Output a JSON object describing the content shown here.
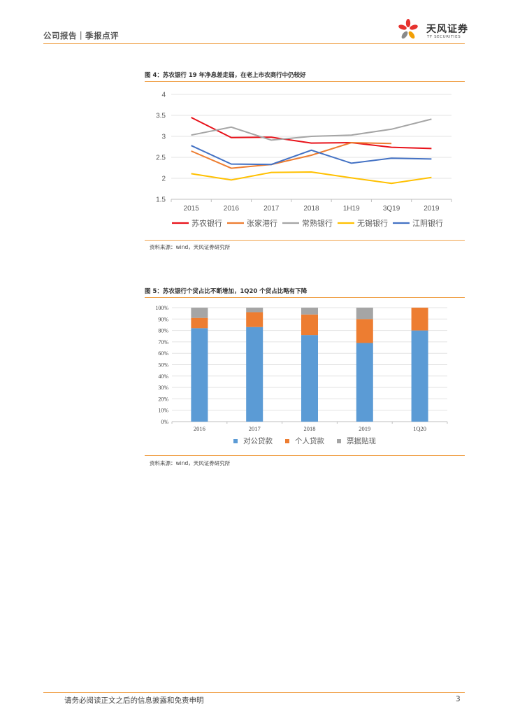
{
  "header": {
    "left_text": "公司报告｜季报点评",
    "logo_cn": "天风证券",
    "logo_en": "TF SECURITIES"
  },
  "figure4": {
    "title": "图 4：苏农银行 19 年净息差走弱，在老上市农商行中仍较好",
    "source": "资料来源：wind，天风证券研究所",
    "chart_data": {
      "type": "line",
      "categories": [
        "2015",
        "2016",
        "2017",
        "2018",
        "1H19",
        "3Q19",
        "2019"
      ],
      "ylim": [
        1.5,
        4
      ],
      "yticks": [
        "1.5",
        "2",
        "2.5",
        "3",
        "3.5",
        "4"
      ],
      "series": [
        {
          "name": "苏农银行",
          "color": "#e8121a",
          "values": [
            3.45,
            2.97,
            2.98,
            2.84,
            2.85,
            2.74,
            2.71
          ]
        },
        {
          "name": "张家港行",
          "color": "#ed7d31",
          "values": [
            2.65,
            2.24,
            2.33,
            2.55,
            2.85,
            2.83,
            null
          ]
        },
        {
          "name": "常熟银行",
          "color": "#a5a5a5",
          "values": [
            3.03,
            3.22,
            2.91,
            3.0,
            3.03,
            3.17,
            3.41
          ]
        },
        {
          "name": "无锡银行",
          "color": "#ffc000",
          "values": [
            2.11,
            1.96,
            2.14,
            2.15,
            2.01,
            1.88,
            2.02
          ]
        },
        {
          "name": "江阴银行",
          "color": "#4472c4",
          "values": [
            2.78,
            2.34,
            2.33,
            2.67,
            2.36,
            2.48,
            2.46
          ]
        }
      ]
    }
  },
  "figure5": {
    "title": "图 5：苏农银行个贷占比不断增加，1Q20 个贷占比略有下降",
    "source": "资料来源：wind，天风证券研究所",
    "chart_data": {
      "type": "bar",
      "stacked": true,
      "categories": [
        "2016",
        "2017",
        "2018",
        "2019",
        "1Q20"
      ],
      "ylim": [
        0,
        100
      ],
      "yticks": [
        "0%",
        "10%",
        "20%",
        "30%",
        "40%",
        "50%",
        "60%",
        "70%",
        "80%",
        "90%",
        "100%"
      ],
      "series": [
        {
          "name": "对公贷款",
          "color": "#5b9bd5",
          "values": [
            82,
            83,
            76,
            69,
            80
          ]
        },
        {
          "name": "个人贷款",
          "color": "#ed7d31",
          "values": [
            9,
            13,
            18,
            21,
            20
          ]
        },
        {
          "name": "票据贴现",
          "color": "#a5a5a5",
          "values": [
            9,
            4,
            6,
            10,
            0
          ]
        }
      ]
    }
  },
  "footer": {
    "disclaimer": "请务必阅读正文之后的信息披露和免责申明",
    "page": "3"
  }
}
